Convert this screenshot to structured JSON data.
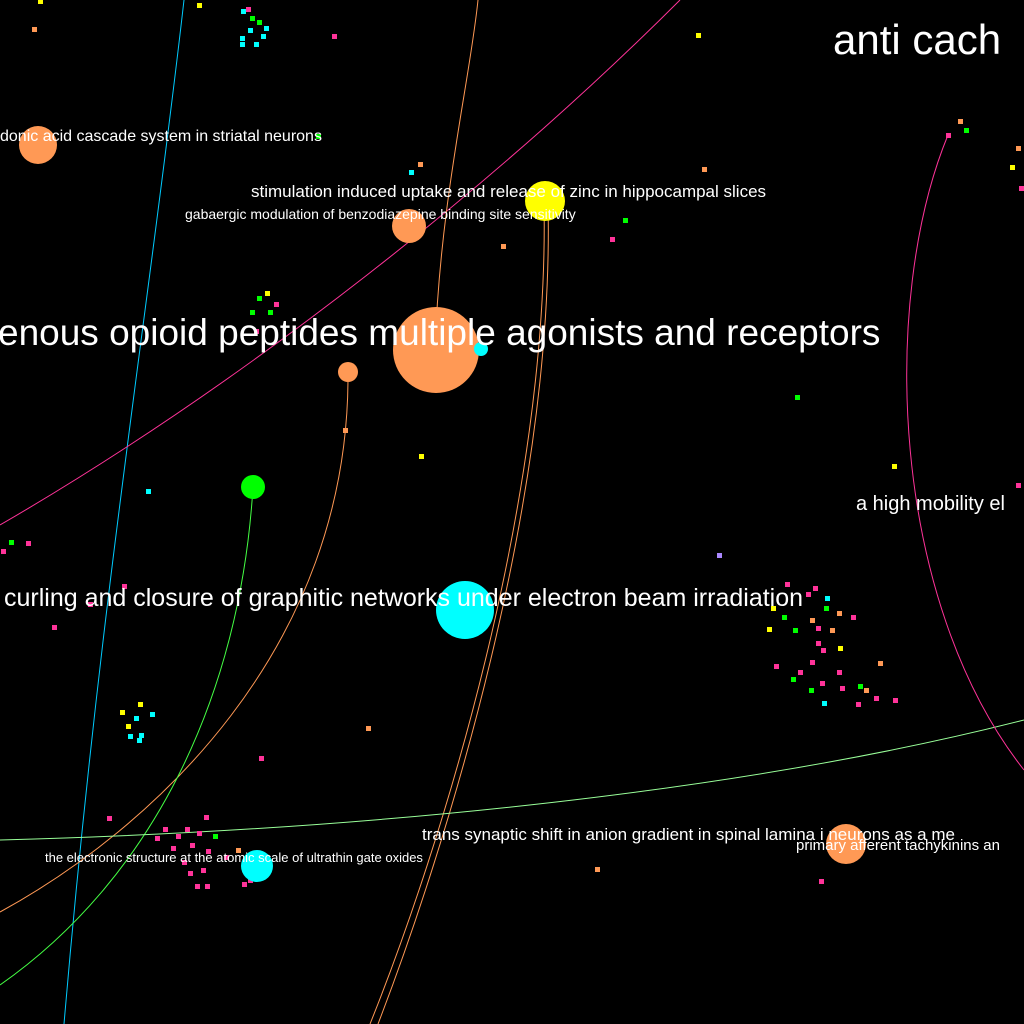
{
  "colors": {
    "background": "#000000",
    "orange": "#ff9955",
    "cyan": "#00ffff",
    "yellow": "#ffff00",
    "green": "#00ff00",
    "magenta": "#ff3399",
    "lavender": "#aa88ff",
    "label": "#ffffff"
  },
  "labels": [
    {
      "id": "anti",
      "text": "anti cach"
    },
    {
      "id": "arachidonic",
      "text": "donic acid cascade system in striatal neurons"
    },
    {
      "id": "zinc",
      "text": "stimulation induced uptake and release of zinc in hippocampal slices"
    },
    {
      "id": "gaba",
      "text": "gabaergic modulation of benzodiazepine binding site sensitivity"
    },
    {
      "id": "opioid",
      "text": "enous opioid peptides multiple agonists and receptors"
    },
    {
      "id": "mobility",
      "text": "a high mobility el"
    },
    {
      "id": "graphitic",
      "text": "curling and closure of graphitic networks under electron beam irradiation"
    },
    {
      "id": "anion",
      "text": "trans synaptic shift in anion gradient in spinal lamina i neurons as a me"
    },
    {
      "id": "tachykinins",
      "text": "primary afferent tachykinins an"
    },
    {
      "id": "oxides",
      "text": "the electronic structure at the atomic scale of ultrathin gate oxides"
    }
  ]
}
